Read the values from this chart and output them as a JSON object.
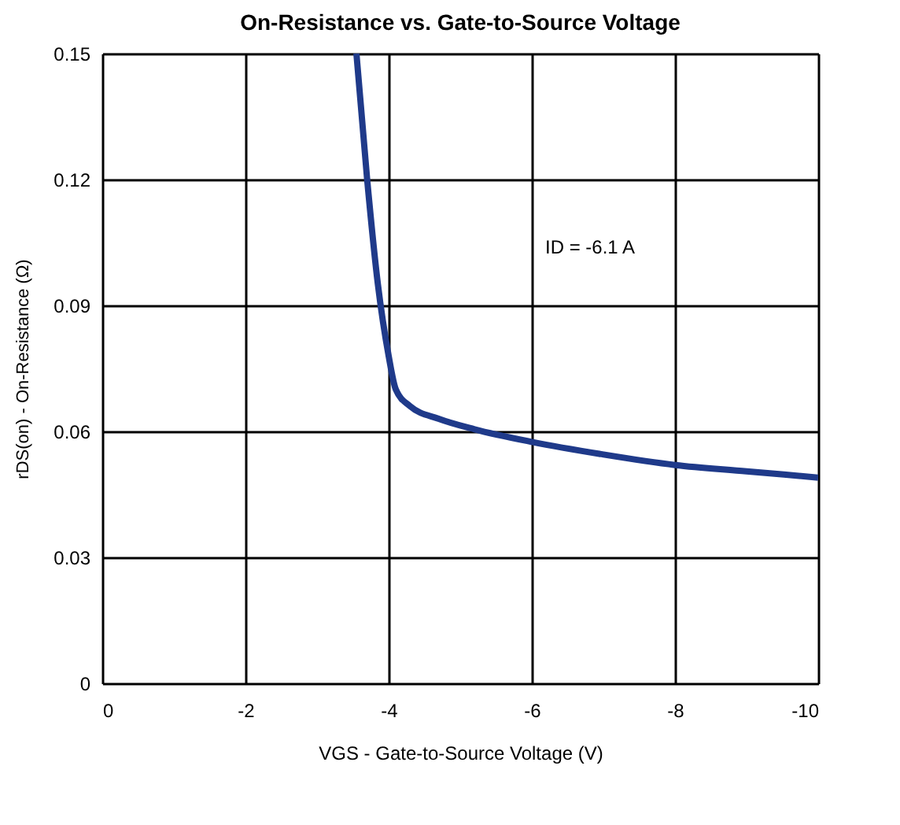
{
  "chart_data": {
    "type": "line",
    "title": "On-Resistance vs. Gate-to-Source Voltage",
    "xlabel": "VGS - Gate-to-Source Voltage (V)",
    "ylabel": "rDS(on) - On-Resistance (Ω)",
    "x": [
      -3.55,
      -3.7,
      -3.85,
      -4.0,
      -4.1,
      -4.3,
      -4.7,
      -5.2,
      -6,
      -7,
      -8,
      -9,
      -10
    ],
    "series": [
      {
        "color": "#1f3a8a",
        "values": [
          0.15,
          0.12,
          0.095,
          0.078,
          0.07,
          0.066,
          0.063,
          0.0605,
          0.0575,
          0.0545,
          0.052,
          0.0505,
          0.049
        ]
      }
    ],
    "xlim": [
      0,
      -10
    ],
    "xticks": [
      0,
      -2,
      -4,
      -6,
      -8,
      -10
    ],
    "ylim": [
      0,
      0.15
    ],
    "yticks": [
      0,
      0.03,
      0.06,
      0.09,
      0.12,
      0.15
    ],
    "grid": true,
    "marker": "none",
    "line_style": "solid",
    "annotations": [
      "ID = -6.1 A"
    ]
  }
}
